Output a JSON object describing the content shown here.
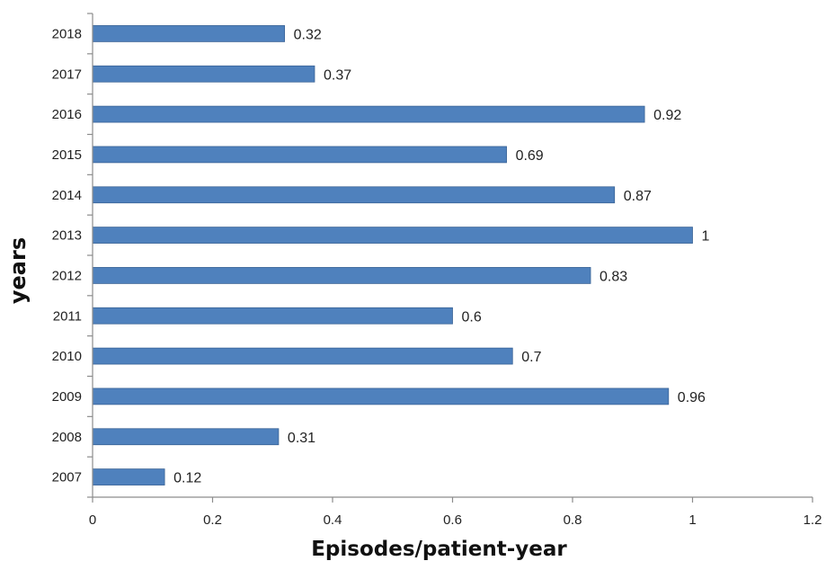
{
  "chart_data": {
    "type": "bar",
    "orientation": "horizontal",
    "title": "",
    "xlabel": "Episodes/patient-year",
    "ylabel": "years",
    "categories": [
      "2007",
      "2008",
      "2009",
      "2010",
      "2011",
      "2012",
      "2013",
      "2014",
      "2015",
      "2016",
      "2017",
      "2018"
    ],
    "values": [
      0.12,
      0.31,
      0.96,
      0.7,
      0.6,
      0.83,
      1,
      0.87,
      0.69,
      0.92,
      0.37,
      0.32
    ],
    "value_labels": [
      "0.12",
      "0.31",
      "0.96",
      "0.7",
      "0.6",
      "0.83",
      "1",
      "0.87",
      "0.69",
      "0.92",
      "0.37",
      "0.32"
    ],
    "xlim": [
      0,
      1.2
    ],
    "x_ticks": [
      "0",
      "0.2",
      "0.4",
      "0.6",
      "0.8",
      "1",
      "1.2"
    ],
    "grid": false,
    "legend": "none",
    "bar_color": "#4F81BD",
    "bar_edge_color": "#3A6396"
  }
}
